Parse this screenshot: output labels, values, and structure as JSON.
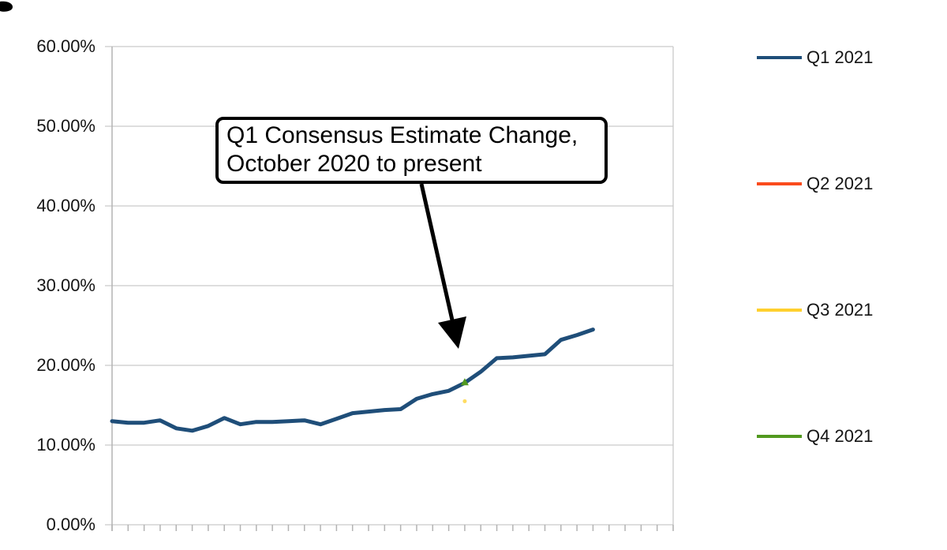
{
  "page": {
    "background": "#ffffff"
  },
  "annotation": {
    "line1": "Q1 Consensus Estimate Change,",
    "line2": "October 2020 to present"
  },
  "legend": {
    "position": "right",
    "items": [
      {
        "label": "Q1 2021",
        "color": "#1f4e79"
      },
      {
        "label": "Q2 2021",
        "color": "#fa4b1d"
      },
      {
        "label": "Q3 2021",
        "color": "#ffd02e"
      },
      {
        "label": "Q4 2021",
        "color": "#52991f"
      }
    ]
  },
  "chart_data": {
    "type": "line",
    "title": "",
    "annotation_text": "Q1 Consensus Estimate Change, October 2020 to present",
    "grid": true,
    "legend_position": "right",
    "x_axis": {
      "description": "weekly observations, October 2020 to present",
      "tick_count": 36,
      "labels_visible": false
    },
    "y_axis": {
      "min": 0,
      "max": 60,
      "unit": "%",
      "tick_labels": [
        "60.00%",
        "50.00%",
        "40.00%",
        "30.00%",
        "20.00%",
        "10.00%",
        "0.00%"
      ],
      "tick_values": [
        60,
        50,
        40,
        30,
        20,
        10,
        0
      ]
    },
    "series": [
      {
        "name": "Q1 2021",
        "color": "#1f4e79",
        "values": [
          13.0,
          12.8,
          12.8,
          13.1,
          12.1,
          11.8,
          12.4,
          13.4,
          12.6,
          12.9,
          12.9,
          13.0,
          13.1,
          12.6,
          13.3,
          14.0,
          14.2,
          14.4,
          14.5,
          15.8,
          16.4,
          16.8,
          17.8,
          19.2,
          20.9,
          21.0,
          21.2,
          21.4,
          23.2,
          23.8,
          24.5
        ]
      },
      {
        "name": "Q2 2021",
        "color": "#fa4b1d",
        "values": []
      },
      {
        "name": "Q3 2021",
        "color": "#ffd02e",
        "marker": "dot",
        "points": [
          {
            "x_index": 22,
            "value": 15.5
          }
        ]
      },
      {
        "name": "Q4 2021",
        "color": "#52991f",
        "marker": "triangle",
        "points": [
          {
            "x_index": 22,
            "value": 17.9
          }
        ]
      }
    ]
  }
}
